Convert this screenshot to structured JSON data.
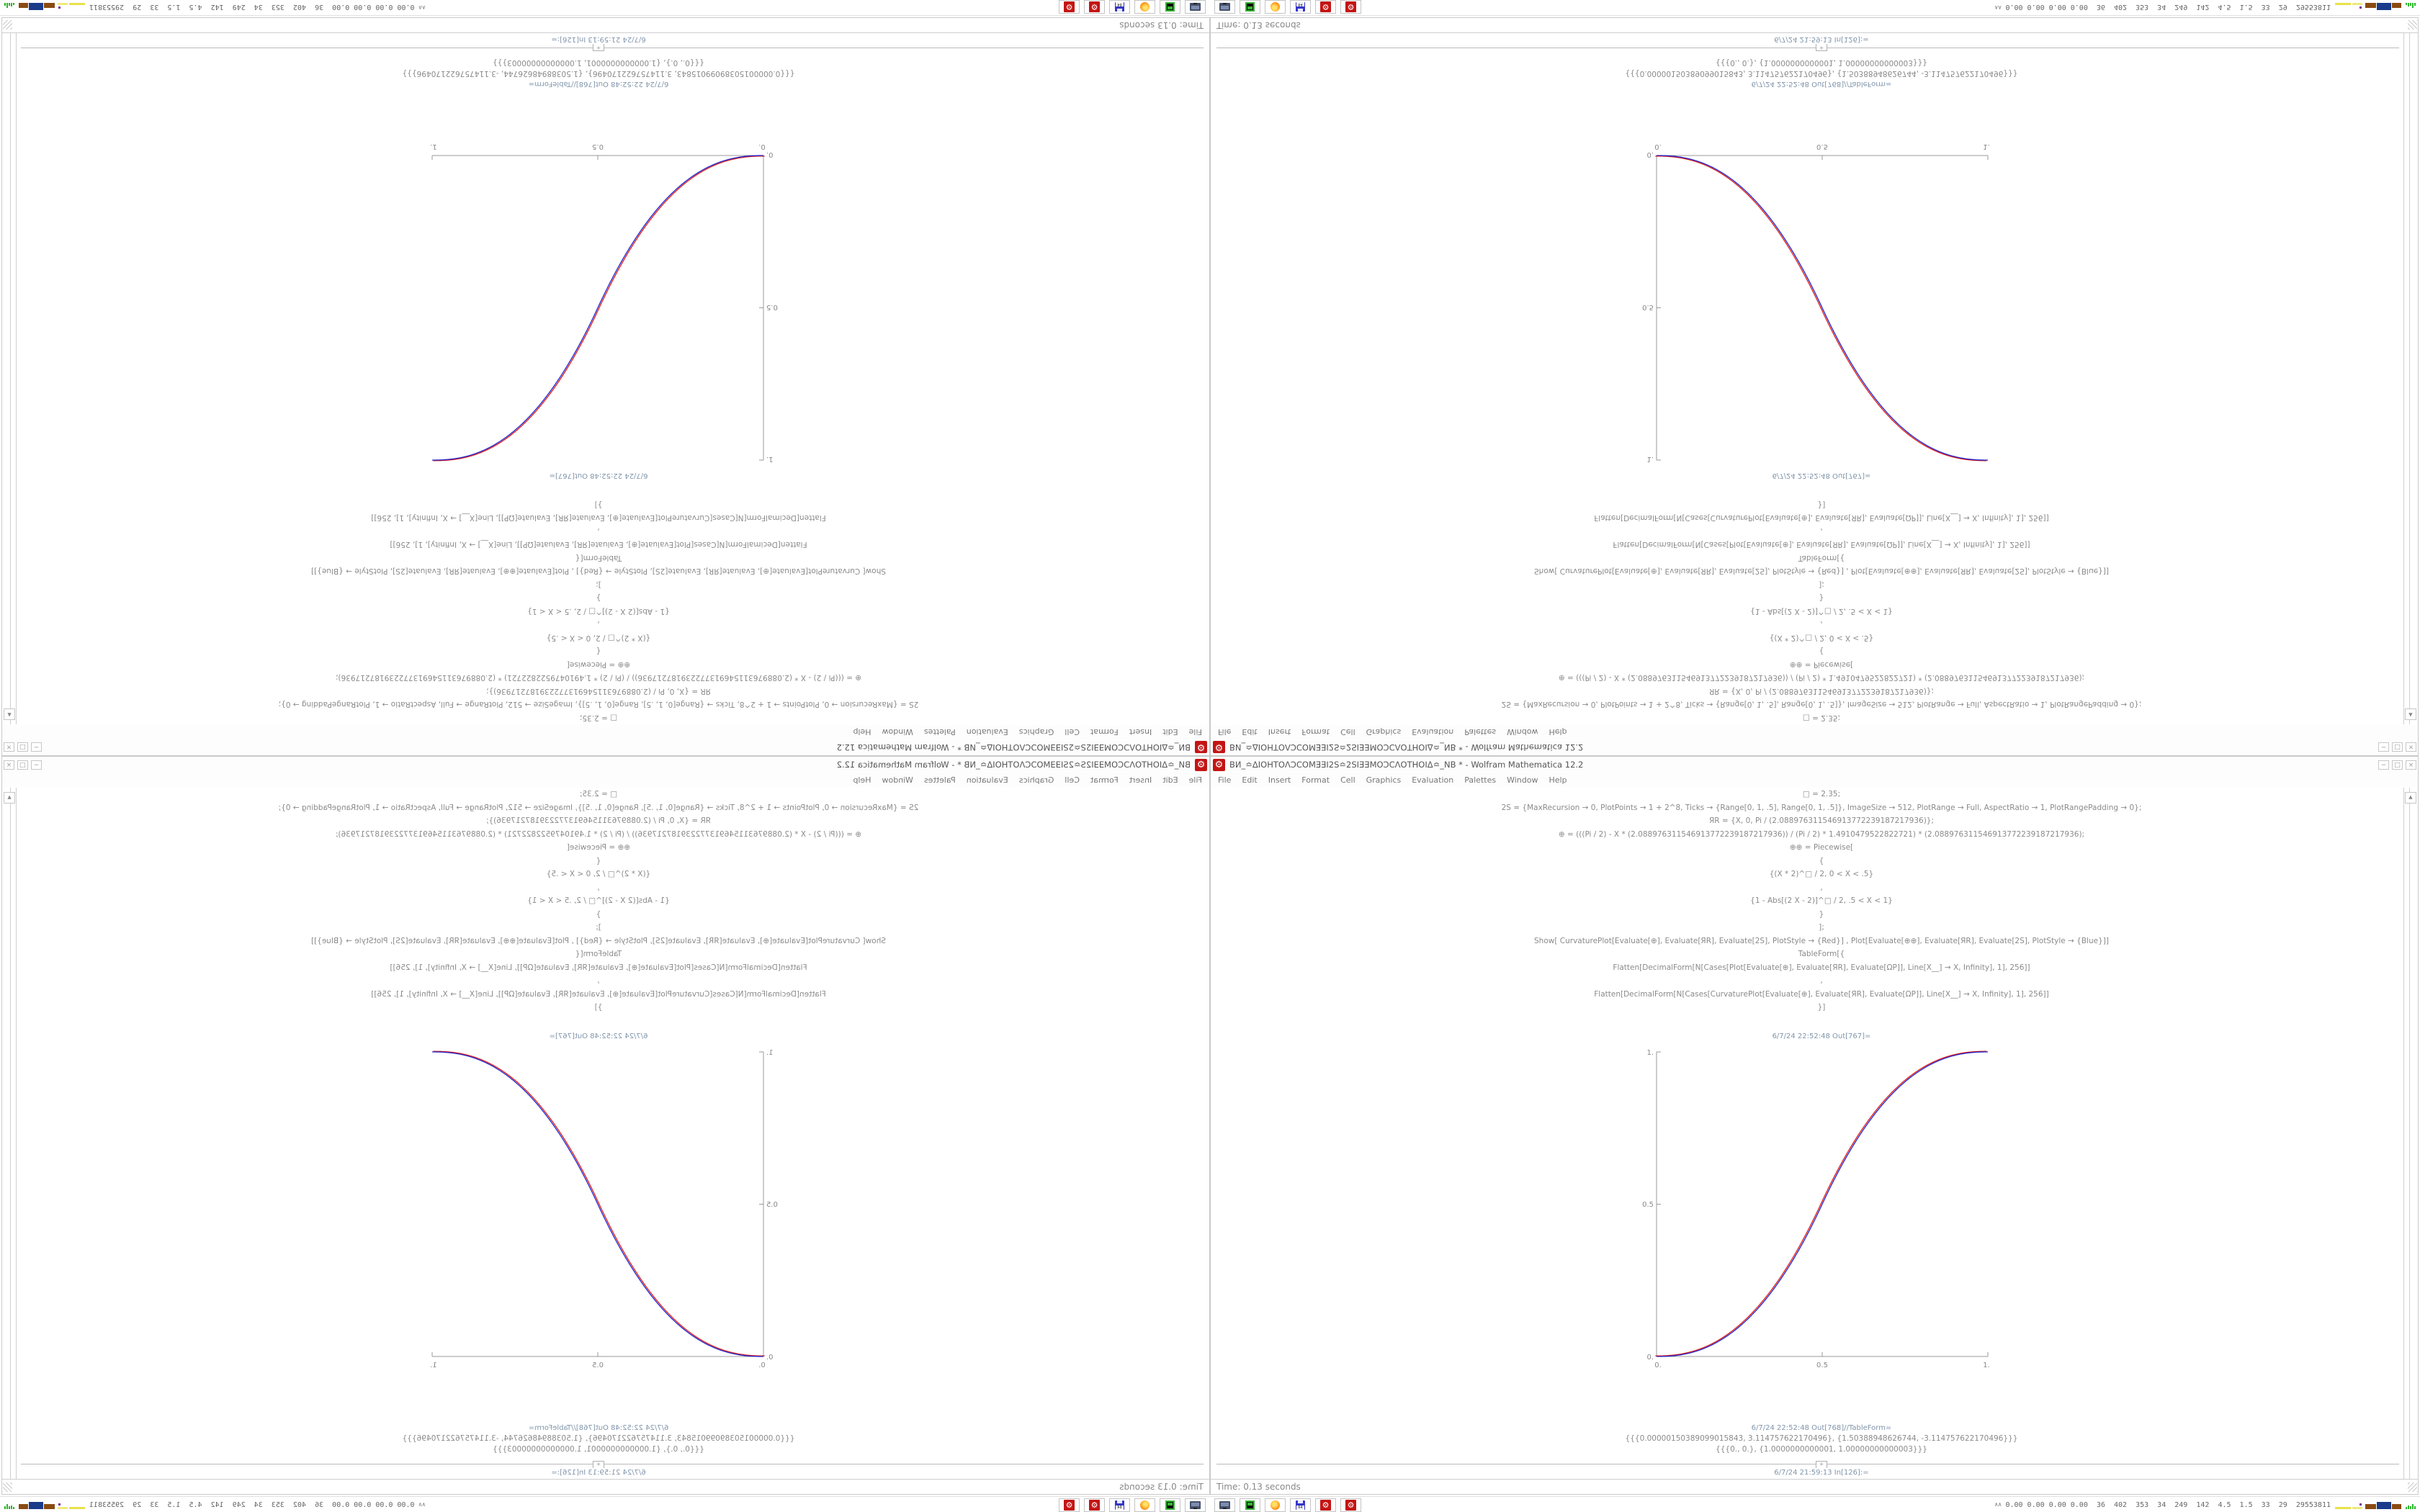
{
  "window": {
    "title": "ВИ_≏ΔΙΟΗΤΟΛƆCOMƎƎΙ2S≏2SΙƎƎMOƆCΛΟΤΗΟΙΔ≏_NB * - Wolfram Mathematica 12.2",
    "app_icon_glyph": "⚙",
    "controls": {
      "minimize": "−",
      "maximize": "□",
      "close": "×"
    }
  },
  "menu": {
    "items": [
      "File",
      "Edit",
      "Insert",
      "Format",
      "Cell",
      "Graphics",
      "Evaluation",
      "Palettes",
      "Window",
      "Help"
    ]
  },
  "notebook": {
    "code_lines": [
      "□ = 2.35;",
      "2S = {MaxRecursion → 0, PlotPoints → 1 + 2^8, Ticks → {Range[0, 1, .5], Range[0, 1, .5]}, ImageSize → 512, PlotRange → Full, AspectRatio → 1, PlotRangePadding → 0};",
      "ЯR = {X, 0, Pi / (2.088976311546913772239187217936)};",
      "⊕ = (((Pi / 2) - X * (2.088976311546913772239187217936)) / (Pi / 2) * 1.4910479522822721) * (2.088976311546913772239187217936);",
      "⊕⊕ = Piecewise[",
      "{",
      "{(X * 2)^□ / 2, 0 < X < .5}",
      ",",
      "{1 - Abs[(2 X - 2)]^□ / 2, .5 < X < 1}",
      "}",
      "];",
      "Show[  CurvaturePlot[Evaluate[⊕], Evaluate[ЯR], Evaluate[2S], PlotStyle → {Red}]  ,   Plot[Evaluate[⊕⊕], Evaluate[ЯR], Evaluate[2S], PlotStyle → {Blue}]]",
      "TableForm[{",
      "Flatten[DecimalForm[N[Cases[Plot[Evaluate[⊕], Evaluate[ЯR], Evaluate[ΩP]], Line[X__] → X, Infinity], 1], 256]]",
      ",",
      "Flatten[DecimalForm[N[Cases[CurvaturePlot[Evaluate[⊕], Evaluate[ЯR], Evaluate[ΩP]], Line[X__] → X, Infinity], 1], 256]]",
      "}]"
    ],
    "out_plot_label": "6/7/24 22:52:48 Out[767]=",
    "out_table_label": "6/7/24 22:52:48 Out[768]//TableForm=",
    "table_rows": [
      "{{{0.00000150389099015843, 3.114757622170496}, {1.50388948626744, -3.114757622170496}}}",
      "{{{0., 0.}, {1.0000000000001, 1.00000000000003}}}"
    ],
    "insert_plus": "+",
    "next_in_label": "6/7/24 21:59:13 In[126]:=",
    "scroll_up_glyph": "▲"
  },
  "statusbar": {
    "text": "Time: 0.13 seconds"
  },
  "taskbar": {
    "chevron": "∧∧",
    "stats": "0.00 0.00 0.00 0.00  36  402  353  34  249  142  4.5  1.5  33  29  29553811",
    "floppy_label": "64",
    "gear_glyph": "⚙",
    "icon_names": [
      "computer-monitor",
      "terminal-drive",
      "firefox-browser",
      "floppy-disk-64",
      "mathematica-gear",
      "mathematica-gear"
    ]
  },
  "layout_note": "Single 1680x1050 desktop rendered four times: normal (bottom-right), mirrored horizontally (bottom-left), mirrored vertically (top-right), rotated 180deg (top-left).",
  "colors": {
    "app_red": "#c41414",
    "plot_red": "#dd1c1c",
    "plot_blue": "#2424cc",
    "cell_label": "#8095ab",
    "code_text": "#8a8a8a"
  },
  "chart_data": {
    "type": "line",
    "title": "",
    "xlabel": "",
    "ylabel": "",
    "xlim": [
      0,
      1
    ],
    "ylim": [
      0,
      1
    ],
    "grid": false,
    "legend_position": "none",
    "xtick_labels": [
      "0.",
      "0.5",
      "1."
    ],
    "ytick_labels": [
      "0.",
      "0.5",
      "1."
    ],
    "xticks": [
      0,
      0.5,
      1
    ],
    "yticks": [
      0,
      0.5,
      1
    ],
    "exponent": 2.35,
    "formula": "y = (2x)^2.35 / 2 for 0 < x < 0.5 ; y = 1 - |2x-2|^2.35 / 2 for 0.5 < x < 1",
    "series": [
      {
        "name": "CurvaturePlot Evaluate[⊕] (Red)",
        "color": "#dd1c1c",
        "x": [
          0,
          0.1,
          0.2,
          0.3,
          0.4,
          0.5,
          0.6,
          0.7,
          0.8,
          0.9,
          1
        ],
        "y": [
          0,
          0.011,
          0.058,
          0.151,
          0.296,
          0.5,
          0.704,
          0.849,
          0.942,
          0.989,
          1
        ]
      },
      {
        "name": "Plot Evaluate[⊕⊕] Piecewise (Blue)",
        "color": "#2424cc",
        "x": [
          0,
          0.1,
          0.2,
          0.3,
          0.4,
          0.5,
          0.6,
          0.7,
          0.8,
          0.9,
          1
        ],
        "y": [
          0,
          0.011,
          0.058,
          0.151,
          0.296,
          0.5,
          0.704,
          0.849,
          0.942,
          0.989,
          1
        ]
      }
    ]
  }
}
